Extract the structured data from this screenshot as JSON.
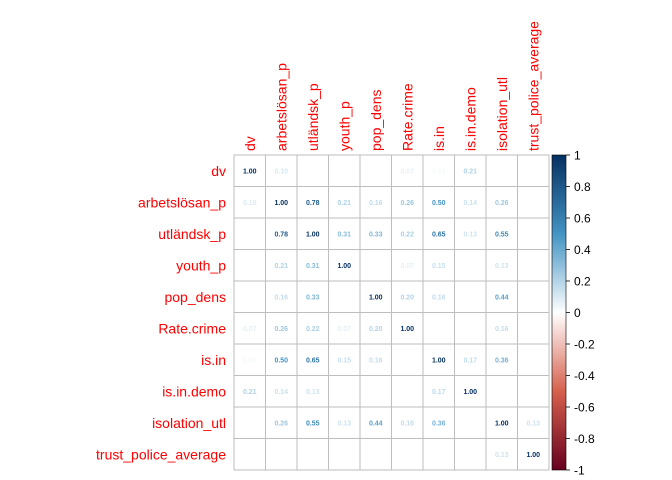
{
  "chart_data": {
    "type": "heatmap",
    "variables": [
      "dv",
      "arbetslösan_p",
      "utländsk_p",
      "youth_p",
      "pop_dens",
      "Rate.crime",
      "is.in",
      "is.in.demo",
      "isolation_utl",
      "trust_police_average"
    ],
    "matrix": [
      [
        1.0,
        0.1,
        0.0,
        0.0,
        0.0,
        0.07,
        0.03,
        0.21,
        0.0,
        0.0
      ],
      [
        0.1,
        1.0,
        0.78,
        0.21,
        0.16,
        0.26,
        0.5,
        0.14,
        0.26,
        0.0
      ],
      [
        0.0,
        0.78,
        1.0,
        0.31,
        0.33,
        0.22,
        0.65,
        0.13,
        0.55,
        0.0
      ],
      [
        0.0,
        0.21,
        0.31,
        1.0,
        0.0,
        0.07,
        0.15,
        0.0,
        0.13,
        0.0
      ],
      [
        0.0,
        0.16,
        0.33,
        0.0,
        1.0,
        0.2,
        0.16,
        0.0,
        0.44,
        0.0
      ],
      [
        0.07,
        0.26,
        0.22,
        0.07,
        0.2,
        1.0,
        0.0,
        0.0,
        0.16,
        0.0
      ],
      [
        0.03,
        0.5,
        0.65,
        0.15,
        0.16,
        0.0,
        1.0,
        0.17,
        0.36,
        0.0
      ],
      [
        0.21,
        0.14,
        0.13,
        0.0,
        0.0,
        0.0,
        0.17,
        1.0,
        0.0,
        0.0
      ],
      [
        0.0,
        0.26,
        0.55,
        0.13,
        0.44,
        0.16,
        0.36,
        0.0,
        1.0,
        0.13
      ],
      [
        0.0,
        0.0,
        0.0,
        0.0,
        0.0,
        0.0,
        0.0,
        0.0,
        0.13,
        1.0
      ]
    ],
    "colorbar": {
      "range": [
        -1,
        1
      ],
      "ticks": [
        "1",
        "0.8",
        "0.6",
        "0.4",
        "0.2",
        "0",
        "-0.2",
        "-0.4",
        "-0.6",
        "-0.8",
        "-1"
      ],
      "tick_values": [
        1,
        0.8,
        0.6,
        0.4,
        0.2,
        0,
        -0.2,
        -0.4,
        -0.6,
        -0.8,
        -1
      ]
    },
    "colors": {
      "neg_end": "#67001f",
      "neg_mid": "#d6604d",
      "zero": "#ffffff",
      "pos_mid": "#4393c3",
      "pos_end": "#053061",
      "label_color": "#ff0000",
      "grid_color": "#bebebe"
    }
  }
}
